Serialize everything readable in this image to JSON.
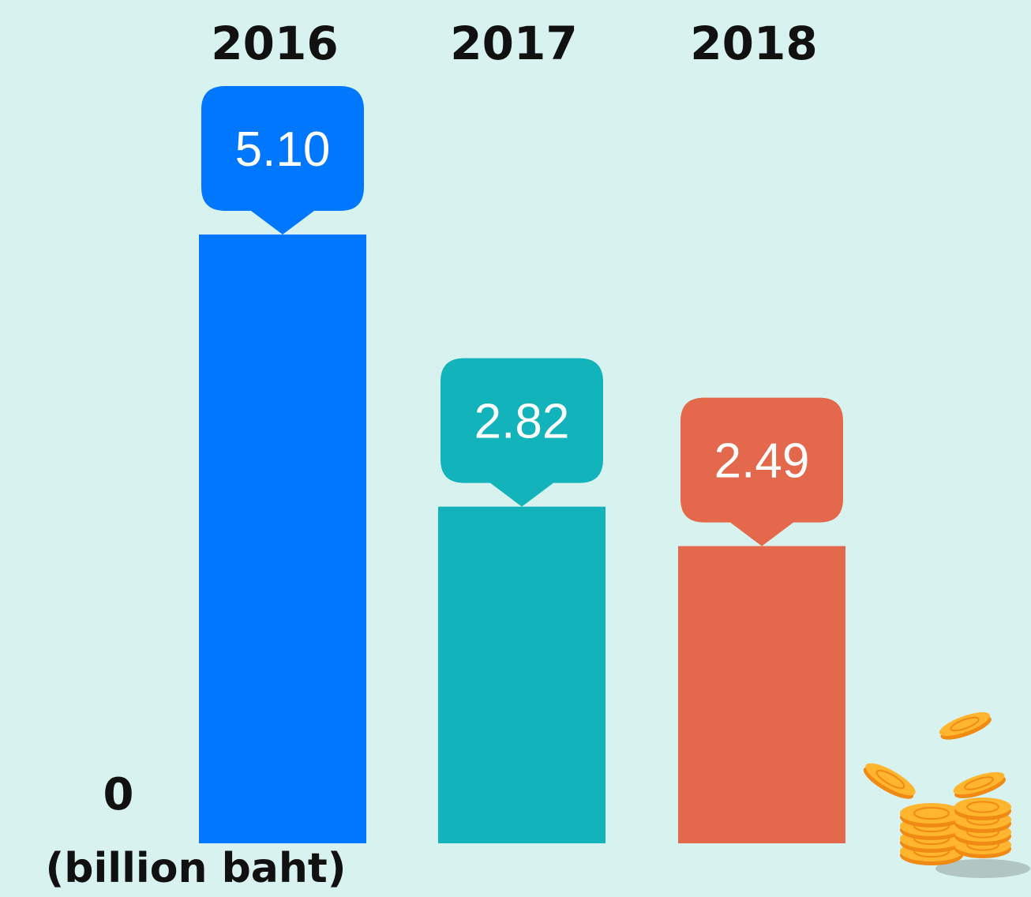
{
  "chart_data": {
    "type": "bar",
    "categories": [
      "2016",
      "2017",
      "2018"
    ],
    "values": [
      5.1,
      2.82,
      2.49
    ],
    "value_labels": [
      "5.10",
      "2.82",
      "2.49"
    ],
    "colors": [
      "#0077ff",
      "#12b3bb",
      "#e4684b"
    ],
    "title": "",
    "xlabel": "",
    "ylabel": "",
    "unit": "(billion baht)",
    "zero_label": "0",
    "ylim": [
      0,
      5.1
    ],
    "grid": false,
    "legend": "none"
  },
  "decoration": {
    "icon": "coin-stack-icon",
    "coin_color": "#ffb52e",
    "coin_edge_color": "#f08a14"
  },
  "background_color": "#d8f3ef"
}
